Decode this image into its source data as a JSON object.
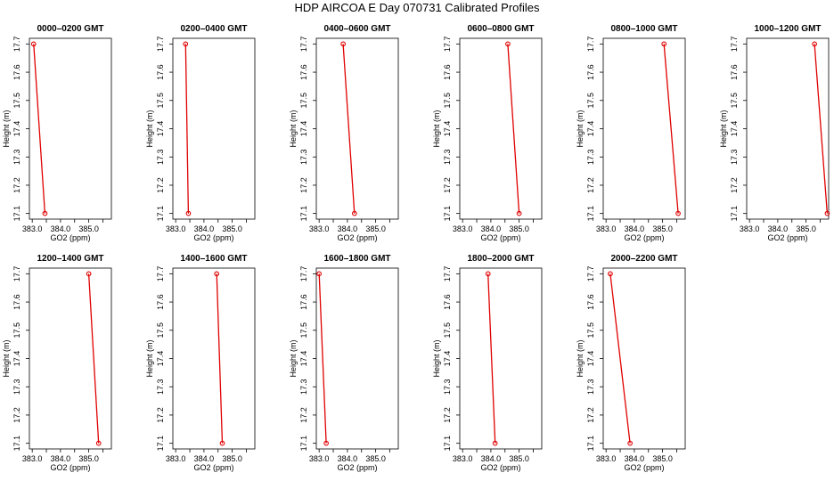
{
  "title": "HDP  AIRCOA E  Day 070731  Calibrated Profiles",
  "colors": {
    "series": "#e00000",
    "axis": "#000000"
  },
  "chart_data": [
    {
      "type": "line",
      "title": "0000–0200 GMT",
      "xlabel": "GO2 (ppm)",
      "ylabel": "Height (m)",
      "xlim": [
        382.9,
        385.8
      ],
      "ylim": [
        17.08,
        17.72
      ],
      "xticks": [
        "383.0",
        "384.0",
        "385.0"
      ],
      "yticks": [
        "17.1",
        "17.2",
        "17.3",
        "17.4",
        "17.5",
        "17.6",
        "17.7"
      ],
      "x": [
        383.05,
        383.45
      ],
      "y": [
        17.7,
        17.1
      ]
    },
    {
      "type": "line",
      "title": "0200–0400 GMT",
      "xlabel": "GO2 (ppm)",
      "ylabel": "Height (m)",
      "xlim": [
        382.9,
        385.8
      ],
      "ylim": [
        17.08,
        17.72
      ],
      "xticks": [
        "383.0",
        "384.0",
        "385.0"
      ],
      "yticks": [
        "17.1",
        "17.2",
        "17.3",
        "17.4",
        "17.5",
        "17.6",
        "17.7"
      ],
      "x": [
        383.35,
        383.45
      ],
      "y": [
        17.7,
        17.1
      ]
    },
    {
      "type": "line",
      "title": "0400–0600 GMT",
      "xlabel": "GO2 (ppm)",
      "ylabel": "Height (m)",
      "xlim": [
        382.9,
        385.8
      ],
      "ylim": [
        17.08,
        17.72
      ],
      "xticks": [
        "383.0",
        "384.0",
        "385.0"
      ],
      "yticks": [
        "17.1",
        "17.2",
        "17.3",
        "17.4",
        "17.5",
        "17.6",
        "17.7"
      ],
      "x": [
        383.85,
        384.25
      ],
      "y": [
        17.7,
        17.1
      ]
    },
    {
      "type": "line",
      "title": "0600–0800 GMT",
      "xlabel": "GO2 (ppm)",
      "ylabel": "Height (m)",
      "xlim": [
        382.9,
        385.8
      ],
      "ylim": [
        17.08,
        17.72
      ],
      "xticks": [
        "383.0",
        "384.0",
        "385.0"
      ],
      "yticks": [
        "17.1",
        "17.2",
        "17.3",
        "17.4",
        "17.5",
        "17.6",
        "17.7"
      ],
      "x": [
        384.6,
        385.0
      ],
      "y": [
        17.7,
        17.1
      ]
    },
    {
      "type": "line",
      "title": "0800–1000 GMT",
      "xlabel": "GO2 (ppm)",
      "ylabel": "Height (m)",
      "xlim": [
        382.9,
        385.8
      ],
      "ylim": [
        17.08,
        17.72
      ],
      "xticks": [
        "383.0",
        "384.0",
        "385.0"
      ],
      "yticks": [
        "17.1",
        "17.2",
        "17.3",
        "17.4",
        "17.5",
        "17.6",
        "17.7"
      ],
      "x": [
        385.05,
        385.55
      ],
      "y": [
        17.7,
        17.1
      ]
    },
    {
      "type": "line",
      "title": "1000–1200 GMT",
      "xlabel": "GO2 (ppm)",
      "ylabel": "Height (m)",
      "xlim": [
        382.9,
        385.8
      ],
      "ylim": [
        17.08,
        17.72
      ],
      "xticks": [
        "383.0",
        "384.0",
        "385.0"
      ],
      "yticks": [
        "17.1",
        "17.2",
        "17.3",
        "17.4",
        "17.5",
        "17.6",
        "17.7"
      ],
      "x": [
        385.3,
        385.75
      ],
      "y": [
        17.7,
        17.1
      ]
    },
    {
      "type": "line",
      "title": "1200–1400 GMT",
      "xlabel": "GO2 (ppm)",
      "ylabel": "Height (m)",
      "xlim": [
        382.9,
        385.8
      ],
      "ylim": [
        17.08,
        17.72
      ],
      "xticks": [
        "383.0",
        "384.0",
        "385.0"
      ],
      "yticks": [
        "17.1",
        "17.2",
        "17.3",
        "17.4",
        "17.5",
        "17.6",
        "17.7"
      ],
      "x": [
        385.0,
        385.35
      ],
      "y": [
        17.7,
        17.1
      ]
    },
    {
      "type": "line",
      "title": "1400–1600 GMT",
      "xlabel": "GO2 (ppm)",
      "ylabel": "Height (m)",
      "xlim": [
        382.9,
        385.8
      ],
      "ylim": [
        17.08,
        17.72
      ],
      "xticks": [
        "383.0",
        "384.0",
        "385.0"
      ],
      "yticks": [
        "17.1",
        "17.2",
        "17.3",
        "17.4",
        "17.5",
        "17.6",
        "17.7"
      ],
      "x": [
        384.45,
        384.65
      ],
      "y": [
        17.7,
        17.1
      ]
    },
    {
      "type": "line",
      "title": "1600–1800 GMT",
      "xlabel": "GO2 (ppm)",
      "ylabel": "Height (m)",
      "xlim": [
        382.9,
        385.8
      ],
      "ylim": [
        17.08,
        17.72
      ],
      "xticks": [
        "383.0",
        "384.0",
        "385.0"
      ],
      "yticks": [
        "17.1",
        "17.2",
        "17.3",
        "17.4",
        "17.5",
        "17.6",
        "17.7"
      ],
      "x": [
        383.0,
        383.25
      ],
      "y": [
        17.7,
        17.1
      ]
    },
    {
      "type": "line",
      "title": "1800–2000 GMT",
      "xlabel": "GO2 (ppm)",
      "ylabel": "Height (m)",
      "xlim": [
        382.9,
        385.8
      ],
      "ylim": [
        17.08,
        17.72
      ],
      "xticks": [
        "383.0",
        "384.0",
        "385.0"
      ],
      "yticks": [
        "17.1",
        "17.2",
        "17.3",
        "17.4",
        "17.5",
        "17.6",
        "17.7"
      ],
      "x": [
        383.9,
        384.15
      ],
      "y": [
        17.7,
        17.1
      ]
    },
    {
      "type": "line",
      "title": "2000–2200 GMT",
      "xlabel": "GO2 (ppm)",
      "ylabel": "Height (m)",
      "xlim": [
        382.9,
        385.8
      ],
      "ylim": [
        17.08,
        17.72
      ],
      "xticks": [
        "383.0",
        "384.0",
        "385.0"
      ],
      "yticks": [
        "17.1",
        "17.2",
        "17.3",
        "17.4",
        "17.5",
        "17.6",
        "17.7"
      ],
      "x": [
        383.15,
        383.85
      ],
      "y": [
        17.7,
        17.1
      ]
    }
  ]
}
